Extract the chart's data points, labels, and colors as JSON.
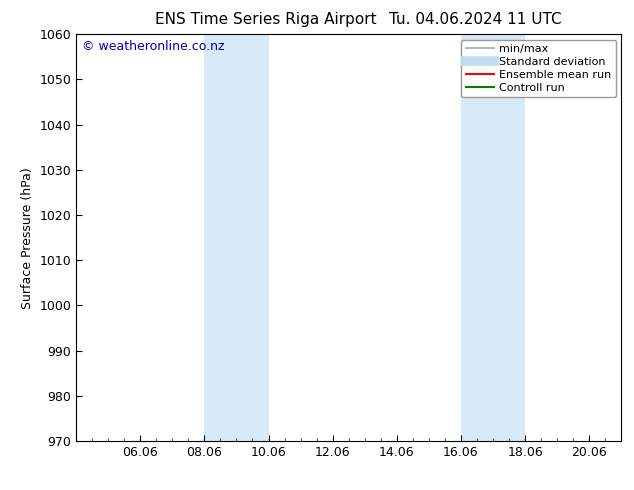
{
  "title_left": "ENS Time Series Riga Airport",
  "title_right": "Tu. 04.06.2024 11 UTC",
  "ylabel": "Surface Pressure (hPa)",
  "ylim": [
    970,
    1060
  ],
  "yticks": [
    970,
    980,
    990,
    1000,
    1010,
    1020,
    1030,
    1040,
    1050,
    1060
  ],
  "xtick_labels": [
    "06.06",
    "08.06",
    "10.06",
    "12.06",
    "14.06",
    "16.06",
    "18.06",
    "20.06"
  ],
  "xtick_positions": [
    2,
    4,
    6,
    8,
    10,
    12,
    14,
    16
  ],
  "x_min": 0,
  "x_max": 17,
  "shade_bands": [
    {
      "x_start": 4,
      "x_end": 6,
      "color": "#d8eaf7"
    },
    {
      "x_start": 12,
      "x_end": 14,
      "color": "#d8eaf7"
    }
  ],
  "watermark": "© weatheronline.co.nz",
  "watermark_color": "#0000bb",
  "background_color": "#ffffff",
  "legend_items": [
    {
      "label": "min/max",
      "color": "#aaaaaa",
      "lw": 1.2,
      "ls": "-"
    },
    {
      "label": "Standard deviation",
      "color": "#c5ddf0",
      "lw": 7,
      "ls": "-"
    },
    {
      "label": "Ensemble mean run",
      "color": "#ff0000",
      "lw": 1.5,
      "ls": "-"
    },
    {
      "label": "Controll run",
      "color": "#008000",
      "lw": 1.5,
      "ls": "-"
    }
  ],
  "title_fontsize": 11,
  "axis_label_fontsize": 9,
  "tick_fontsize": 9,
  "watermark_fontsize": 9,
  "legend_fontsize": 8
}
